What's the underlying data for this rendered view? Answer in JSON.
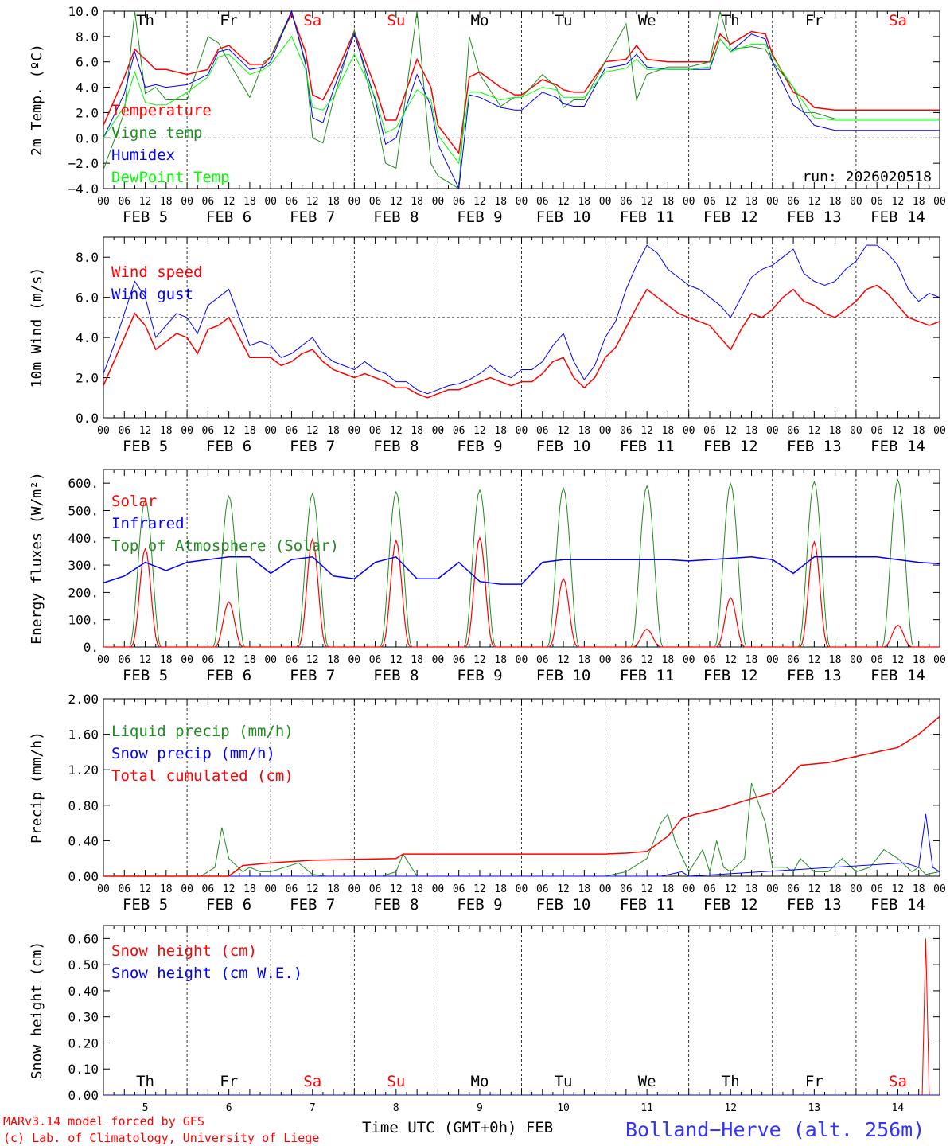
{
  "chart_data": [
    {
      "type": "line",
      "ylabel": "2m Temp. (ºC)",
      "ylim": [
        -4,
        10
      ],
      "yticks": [
        -4,
        -2,
        0,
        2,
        4,
        6,
        8,
        10
      ],
      "ytick_labels": [
        "−4.0",
        "−2.0",
        "0.0",
        "2.0",
        "4.0",
        "6.0",
        "8.0",
        "10.0"
      ],
      "zero_line": 0,
      "run_label": "run: 2026020518",
      "legend": [
        "Temperature",
        "Vigne temp",
        "Humidex",
        "DewPoint Temp"
      ],
      "x_hours": [
        0,
        6,
        9,
        12,
        15,
        18,
        24,
        30,
        33,
        36,
        42,
        46,
        48,
        54,
        58,
        60,
        63,
        66,
        72,
        78,
        81,
        84,
        90,
        94,
        96,
        102,
        105,
        108,
        114,
        118,
        120,
        126,
        130,
        132,
        135,
        138,
        144,
        150,
        153,
        156,
        162,
        166,
        168,
        174,
        177,
        180,
        186,
        190,
        192,
        198,
        201,
        204,
        210,
        214,
        216,
        222,
        225,
        228,
        234,
        238,
        240
      ],
      "series": [
        {
          "name": "Temperature",
          "color": "#ff0000",
          "values": [
            1.0,
            4.8,
            7.0,
            6.2,
            5.4,
            5.4,
            5.0,
            5.4,
            7.0,
            7.3,
            5.8,
            5.8,
            6.4,
            9.8,
            6.8,
            3.4,
            3.0,
            4.6,
            8.4,
            4.0,
            1.4,
            1.4,
            6.2,
            4.0,
            1.0,
            -1.2,
            4.8,
            5.2,
            4.0,
            3.4,
            3.4,
            4.6,
            4.2,
            3.8,
            3.6,
            3.6,
            6.0,
            6.2,
            7.3,
            6.2,
            6.0,
            6.0,
            6.0,
            6.0,
            8.2,
            7.4,
            8.4,
            8.2,
            6.6,
            3.6,
            3.2,
            2.4,
            2.2,
            2.2,
            2.2,
            2.2,
            2.2,
            2.2,
            2.2,
            2.2,
            2.2
          ]
        },
        {
          "name": "Vigne temp",
          "color": "#228b22",
          "values": [
            -2.5,
            2.0,
            10.0,
            3.5,
            4.0,
            3.0,
            3.0,
            8.0,
            7.5,
            6.0,
            3.2,
            6.0,
            6.4,
            10.0,
            6.0,
            0.0,
            -0.4,
            3.0,
            8.5,
            2.0,
            -2.0,
            -2.4,
            10.0,
            -2.0,
            -3.0,
            -4.0,
            8.0,
            5.0,
            2.5,
            3.2,
            3.2,
            5.0,
            4.0,
            2.4,
            3.0,
            3.0,
            6.0,
            9.0,
            3.0,
            5.0,
            5.6,
            5.6,
            5.6,
            6.0,
            10.0,
            7.0,
            7.2,
            7.0,
            6.0,
            4.0,
            2.0,
            2.0,
            1.5,
            1.5,
            1.5,
            1.5,
            1.5,
            1.5,
            1.5,
            1.5,
            1.5
          ]
        },
        {
          "name": "Humidex",
          "color": "#0000ff",
          "values": [
            0.0,
            3.5,
            6.8,
            4.0,
            4.2,
            4.0,
            4.2,
            5.0,
            6.8,
            7.0,
            5.4,
            5.6,
            6.0,
            10.0,
            5.8,
            1.6,
            1.2,
            3.8,
            8.2,
            3.0,
            -0.5,
            0.0,
            5.0,
            2.5,
            -0.5,
            -4.0,
            3.4,
            3.2,
            2.4,
            2.2,
            2.2,
            3.6,
            3.2,
            2.7,
            2.5,
            2.5,
            5.5,
            5.8,
            6.6,
            5.6,
            5.4,
            5.4,
            5.4,
            5.4,
            7.8,
            6.8,
            8.2,
            7.8,
            6.0,
            2.6,
            2.0,
            1.0,
            0.6,
            0.6,
            0.6,
            0.6,
            0.6,
            0.6,
            0.6,
            0.6,
            0.6
          ]
        },
        {
          "name": "DewPoint Temp",
          "color": "#00ff00",
          "values": [
            0.0,
            2.5,
            5.2,
            2.8,
            2.6,
            2.6,
            3.6,
            4.8,
            6.4,
            6.6,
            5.0,
            5.4,
            5.8,
            8.0,
            5.4,
            2.4,
            2.2,
            3.2,
            6.6,
            3.2,
            0.4,
            0.8,
            3.8,
            3.0,
            0.2,
            -2.0,
            3.6,
            3.6,
            3.0,
            3.2,
            3.2,
            4.0,
            3.8,
            3.2,
            3.2,
            3.2,
            5.2,
            5.5,
            6.2,
            5.4,
            5.4,
            5.4,
            5.4,
            5.6,
            7.8,
            6.8,
            7.4,
            7.4,
            6.4,
            4.0,
            2.8,
            1.6,
            1.4,
            1.4,
            1.4,
            1.4,
            1.4,
            1.4,
            1.4,
            1.4,
            1.4
          ]
        }
      ]
    },
    {
      "type": "line",
      "ylabel": "10m Wind (m/s)",
      "ylim": [
        0,
        9
      ],
      "yticks": [
        0,
        2,
        4,
        6,
        8
      ],
      "ytick_labels": [
        "0.0",
        "2.0",
        "4.0",
        "6.0",
        "8.0"
      ],
      "ref_line": 5,
      "legend": [
        "Wind speed",
        "Wind gust"
      ],
      "x_hours": [
        0,
        3,
        6,
        9,
        12,
        15,
        18,
        21,
        24,
        27,
        30,
        33,
        36,
        39,
        42,
        45,
        48,
        51,
        54,
        57,
        60,
        63,
        66,
        69,
        72,
        75,
        78,
        81,
        84,
        87,
        90,
        93,
        96,
        99,
        102,
        105,
        108,
        111,
        114,
        117,
        120,
        123,
        126,
        129,
        132,
        135,
        138,
        141,
        144,
        147,
        150,
        153,
        156,
        159,
        162,
        165,
        168,
        171,
        174,
        177,
        180,
        183,
        186,
        189,
        192,
        195,
        198,
        201,
        204,
        207,
        210,
        213,
        216,
        219,
        222,
        225,
        228,
        231,
        234,
        237,
        240
      ],
      "series": [
        {
          "name": "Wind speed",
          "color": "#ff0000",
          "values": [
            1.6,
            2.8,
            4.0,
            5.2,
            4.6,
            3.4,
            3.8,
            4.2,
            4.0,
            3.2,
            4.4,
            4.6,
            5.0,
            4.0,
            3.0,
            3.0,
            3.0,
            2.6,
            2.8,
            3.2,
            3.4,
            2.8,
            2.4,
            2.2,
            2.0,
            2.2,
            2.0,
            1.8,
            1.5,
            1.5,
            1.2,
            1.0,
            1.2,
            1.4,
            1.4,
            1.6,
            1.8,
            2.0,
            1.8,
            1.6,
            1.8,
            1.8,
            2.2,
            2.8,
            3.0,
            2.0,
            1.5,
            2.0,
            3.0,
            3.5,
            4.5,
            5.5,
            6.4,
            6.0,
            5.6,
            5.2,
            5.0,
            4.8,
            4.6,
            4.0,
            3.4,
            4.4,
            5.2,
            5.0,
            5.4,
            6.0,
            6.4,
            5.8,
            5.6,
            5.2,
            5.0,
            5.4,
            5.8,
            6.4,
            6.6,
            6.2,
            5.6,
            5.0,
            4.8,
            4.6,
            4.8
          ]
        },
        {
          "name": "Wind gust",
          "color": "#0000ff",
          "values": [
            2.2,
            3.6,
            5.2,
            6.8,
            6.0,
            4.0,
            4.6,
            5.2,
            5.0,
            4.2,
            5.6,
            6.0,
            6.4,
            5.0,
            3.6,
            3.8,
            3.6,
            3.0,
            3.2,
            3.6,
            4.0,
            3.2,
            2.8,
            2.6,
            2.4,
            2.8,
            2.4,
            2.2,
            1.8,
            1.8,
            1.4,
            1.2,
            1.4,
            1.6,
            1.7,
            1.9,
            2.2,
            2.6,
            2.2,
            2.0,
            2.4,
            2.4,
            2.8,
            3.6,
            4.2,
            2.8,
            1.9,
            2.6,
            4.0,
            4.8,
            6.4,
            7.6,
            8.6,
            8.2,
            7.4,
            7.0,
            6.6,
            6.4,
            6.0,
            5.6,
            5.0,
            6.0,
            7.0,
            7.4,
            7.6,
            8.0,
            8.4,
            7.2,
            6.8,
            6.6,
            6.8,
            7.4,
            7.8,
            8.6,
            8.6,
            8.2,
            7.6,
            6.4,
            5.8,
            6.2,
            6.0
          ]
        }
      ]
    },
    {
      "type": "line",
      "ylabel": "Energy fluxes (W/m²)",
      "ylim": [
        0,
        650
      ],
      "yticks": [
        0,
        100,
        200,
        300,
        400,
        500,
        600
      ],
      "ytick_labels": [
        "0.",
        "100.",
        "200.",
        "300.",
        "400.",
        "500.",
        "600."
      ],
      "legend": [
        "Solar",
        "Infrared",
        "Top of Atmosphere (Solar)"
      ],
      "diurnal": {
        "day_start_hour": 7.5,
        "day_end_hour": 16.5,
        "toa_peak": [
          540,
          553,
          562,
          568,
          575,
          582,
          590,
          598,
          605,
          612
        ],
        "solar_peak": [
          360,
          165,
          395,
          390,
          400,
          250,
          65,
          180,
          385,
          80
        ]
      },
      "series": [
        {
          "name": "Infrared",
          "color": "#0000ff",
          "x_hours": [
            0,
            6,
            12,
            18,
            24,
            30,
            36,
            42,
            48,
            54,
            60,
            66,
            72,
            78,
            84,
            90,
            96,
            102,
            108,
            114,
            120,
            126,
            132,
            138,
            144,
            150,
            156,
            162,
            168,
            174,
            180,
            186,
            192,
            198,
            204,
            210,
            216,
            222,
            228,
            234,
            240
          ],
          "values": [
            235,
            260,
            310,
            280,
            310,
            320,
            330,
            330,
            270,
            320,
            330,
            260,
            250,
            310,
            330,
            250,
            250,
            310,
            240,
            230,
            230,
            310,
            320,
            320,
            320,
            320,
            320,
            320,
            315,
            320,
            325,
            330,
            320,
            270,
            330,
            330,
            330,
            330,
            320,
            310,
            305
          ]
        }
      ]
    },
    {
      "type": "line",
      "ylabel": "Precip (mm/h)",
      "ylim": [
        0,
        2
      ],
      "yticks": [
        0,
        0.4,
        0.8,
        1.2,
        1.6,
        2.0
      ],
      "ytick_labels": [
        "0.00",
        "0.40",
        "0.80",
        "1.20",
        "1.60",
        "2.00"
      ],
      "legend": [
        "Liquid precip (mm/h)",
        "Snow precip (mm/h)",
        "Total cumulated (cm)"
      ],
      "series": [
        {
          "name": "Liquid precip (mm/h)",
          "color": "#228b22",
          "x_hours": [
            0,
            28,
            32,
            34,
            36,
            40,
            42,
            45,
            48,
            52,
            56,
            60,
            64,
            80,
            84,
            86,
            90,
            144,
            150,
            156,
            160,
            162,
            164,
            168,
            172,
            174,
            176,
            178,
            180,
            184,
            186,
            190,
            192,
            196,
            198,
            200,
            204,
            208,
            212,
            216,
            220,
            224,
            228,
            232,
            234,
            236,
            240
          ],
          "values": [
            0,
            0,
            0.1,
            0.55,
            0.2,
            0.05,
            0.1,
            0.05,
            0.05,
            0.1,
            0.15,
            0.02,
            0,
            0,
            0.05,
            0.25,
            0,
            0,
            0.05,
            0.2,
            0.6,
            0.7,
            0.4,
            0.05,
            0.3,
            0.05,
            0.4,
            0.1,
            0.05,
            0.2,
            1.05,
            0.6,
            0.1,
            0.1,
            0.05,
            0.2,
            0.05,
            0.05,
            0.2,
            0.05,
            0.1,
            0.3,
            0.2,
            0.05,
            0.1,
            0.02,
            0.05
          ]
        },
        {
          "name": "Snow precip (mm/h)",
          "color": "#0000ff",
          "x_hours": [
            0,
            160,
            166,
            168,
            230,
            234,
            236,
            238,
            240
          ],
          "values": [
            0,
            0,
            0.05,
            0,
            0.15,
            0.1,
            0.7,
            0.1,
            0.05
          ]
        },
        {
          "name": "Total cumulated (cm)",
          "color": "#ff0000",
          "x_hours": [
            0,
            36,
            40,
            48,
            60,
            84,
            86,
            144,
            150,
            156,
            162,
            166,
            170,
            176,
            184,
            192,
            194,
            200,
            208,
            216,
            228,
            234,
            240
          ],
          "values": [
            0,
            0,
            0.12,
            0.15,
            0.18,
            0.2,
            0.25,
            0.25,
            0.26,
            0.28,
            0.45,
            0.65,
            0.7,
            0.75,
            0.85,
            0.94,
            1.0,
            1.25,
            1.28,
            1.35,
            1.45,
            1.6,
            1.8
          ]
        }
      ]
    },
    {
      "type": "line",
      "ylabel": "Snow height (cm)",
      "xlabel": "Time UTC (GMT+0h) FEB",
      "ylim": [
        0,
        0.65
      ],
      "yticks": [
        0,
        0.1,
        0.2,
        0.3,
        0.4,
        0.5,
        0.6
      ],
      "ytick_labels": [
        "0.00",
        "0.10",
        "0.20",
        "0.30",
        "0.40",
        "0.50",
        "0.60"
      ],
      "legend": [
        "Snow height (cm)",
        "Snow height (cm W.E.)"
      ],
      "series": [
        {
          "name": "Snow height (cm)",
          "color": "#ff0000",
          "x_hours": [
            0,
            234,
            235,
            236,
            237,
            240
          ],
          "values": [
            0,
            0,
            0,
            0.6,
            0,
            0
          ]
        },
        {
          "name": "Snow height (cm W.E.)",
          "color": "#0000ff",
          "x_hours": [
            0,
            240
          ],
          "values": [
            0,
            0
          ]
        }
      ]
    }
  ],
  "x_axis": {
    "hour_labels": [
      "00",
      "06",
      "12",
      "18"
    ],
    "final_label": "00",
    "dates": [
      "FEB  5",
      "FEB  6",
      "FEB  7",
      "FEB  8",
      "FEB  9",
      "FEB 10",
      "FEB 11",
      "FEB 12",
      "FEB 13",
      "FEB 14"
    ],
    "day_numbers": [
      "5",
      "6",
      "7",
      "8",
      "9",
      "10",
      "11",
      "12",
      "13",
      "14"
    ],
    "weekdays": [
      "Th",
      "Fr",
      "Sa",
      "Su",
      "Mo",
      "Tu",
      "We",
      "Th",
      "Fr",
      "Sa"
    ],
    "weekend_color": "#ff0000"
  },
  "footer": {
    "model_line": "MARv3.14 model forced by GFS",
    "credit_line": "(c) Lab. of Climatology, University of Liege",
    "station": "Bolland−Herve (alt. 256m)"
  },
  "colors": {
    "red": "#ff0000",
    "green": "#228b22",
    "blue": "#0000ff",
    "light_green": "#00ff00",
    "station": "#3333ff"
  }
}
